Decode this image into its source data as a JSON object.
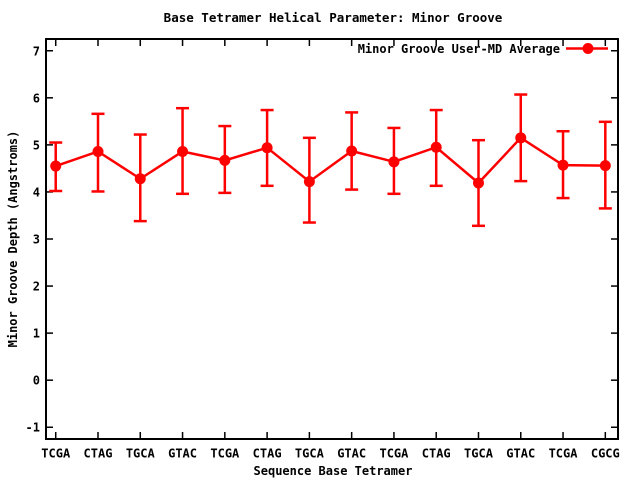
{
  "chart_data": {
    "type": "line",
    "title": "Base Tetramer Helical Parameter: Minor Groove",
    "xlabel": "Sequence Base Tetramer",
    "ylabel": "Minor Groove Depth (Angstroms)",
    "categories": [
      "TCGA",
      "CTAG",
      "TGCA",
      "GTAC",
      "TCGA",
      "CTAG",
      "TGCA",
      "GTAC",
      "TCGA",
      "CTAG",
      "TGCA",
      "GTAC",
      "TCGA",
      "CGCG"
    ],
    "series": [
      {
        "name": "Minor Groove User-MD Average",
        "color": "#ff0000",
        "marker": "filled-circle",
        "values": [
          4.55,
          4.86,
          4.28,
          4.86,
          4.67,
          4.94,
          4.22,
          4.87,
          4.64,
          4.95,
          4.19,
          5.15,
          4.57,
          4.56
        ],
        "err_low": [
          4.02,
          4.01,
          3.38,
          3.96,
          3.98,
          4.13,
          3.35,
          4.05,
          3.96,
          4.13,
          3.28,
          4.23,
          3.87,
          3.65
        ],
        "err_high": [
          5.05,
          5.66,
          5.22,
          5.78,
          5.4,
          5.74,
          5.15,
          5.69,
          5.36,
          5.74,
          5.1,
          6.07,
          5.29,
          5.49
        ]
      }
    ],
    "yticks": [
      -1,
      0,
      1,
      2,
      3,
      4,
      5,
      6,
      7
    ],
    "ylim": [
      -1.25,
      7.25
    ],
    "xlim": [
      0.77,
      14.3
    ],
    "grid": false,
    "legend_position": "top-right-inside",
    "background": "#ffffff",
    "axis_color": "#000000"
  }
}
